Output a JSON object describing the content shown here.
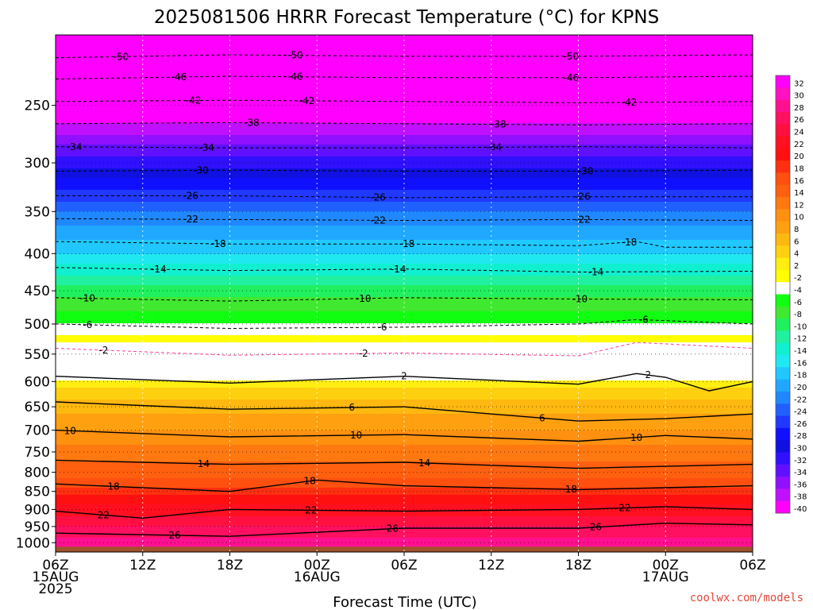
{
  "chart_data": {
    "type": "heatmap",
    "title": "2025081506 HRRR Forecast Temperature (°C) for KPNS",
    "xlabel": "Forecast Time (UTC)",
    "ylabel": "",
    "y_axis": {
      "scale": "log",
      "reversed": true,
      "ylim": [
        1030,
        200
      ]
    },
    "x_axis": {
      "xlim_hours": [
        0,
        48
      ]
    },
    "x_ticks": [
      {
        "hour": 0,
        "lines": [
          "06Z",
          "15AUG",
          "2025"
        ]
      },
      {
        "hour": 6,
        "lines": [
          "12Z"
        ]
      },
      {
        "hour": 12,
        "lines": [
          "18Z"
        ]
      },
      {
        "hour": 18,
        "lines": [
          "00Z",
          "16AUG"
        ]
      },
      {
        "hour": 24,
        "lines": [
          "06Z"
        ]
      },
      {
        "hour": 30,
        "lines": [
          "12Z"
        ]
      },
      {
        "hour": 36,
        "lines": [
          "18Z"
        ]
      },
      {
        "hour": 42,
        "lines": [
          "00Z",
          "17AUG"
        ]
      },
      {
        "hour": 48,
        "lines": [
          "06Z"
        ]
      }
    ],
    "y_ticks": [
      250,
      300,
      350,
      400,
      450,
      500,
      550,
      600,
      650,
      700,
      750,
      800,
      850,
      900,
      950,
      1000
    ],
    "grid": true,
    "colorbar": {
      "position": "right",
      "labels": [
        "32",
        "30",
        "28",
        "26",
        "24",
        "22",
        "20",
        "18",
        "16",
        "14",
        "12",
        "10",
        "8",
        "6",
        "4",
        "2",
        "-2",
        "-4",
        "-6",
        "-8",
        "-10",
        "-12",
        "-14",
        "-16",
        "-18",
        "-20",
        "-22",
        "-24",
        "-26",
        "-28",
        "-30",
        "-32",
        "-34",
        "-36",
        "-38",
        "-40"
      ],
      "colors": [
        "#ff00ff",
        "#ff10c0",
        "#ff1090",
        "#ff1060",
        "#ff1040",
        "#ff1020",
        "#ff1010",
        "#ff3010",
        "#ff5010",
        "#ff6010",
        "#ff7810",
        "#ff9010",
        "#ffa010",
        "#ffb810",
        "#ffd010",
        "#ffee10",
        "#ffff00",
        "#ffffff",
        "#10ff10",
        "#40e830",
        "#20f060",
        "#20f0a0",
        "#10f0d0",
        "#20e8f0",
        "#20c8ff",
        "#20a8ff",
        "#2088ff",
        "#2060ff",
        "#2038ff",
        "#1010ff",
        "#1010e0",
        "#3010ff",
        "#6010ff",
        "#9010ff",
        "#c010ff",
        "#ff00ff"
      ]
    },
    "temperature_profile": {
      "pressure_hpa": [
        1000,
        950,
        900,
        850,
        800,
        750,
        700,
        650,
        600,
        550,
        500,
        450,
        400,
        350,
        300,
        250,
        200
      ],
      "temperature_c": [
        28,
        25,
        22,
        18,
        14,
        12,
        9,
        6,
        2,
        0,
        -5,
        -10,
        -17,
        -23,
        -32,
        -42,
        -52
      ]
    },
    "contours": [
      {
        "value": -50,
        "style": "dashed",
        "points": [
          [
            0,
            215
          ],
          [
            12,
            213
          ],
          [
            24,
            214
          ],
          [
            36,
            214
          ],
          [
            48,
            213
          ]
        ],
        "labels": [
          4.5,
          16.5,
          35.5
        ]
      },
      {
        "value": -46,
        "style": "dashed",
        "points": [
          [
            0,
            230
          ],
          [
            12,
            228
          ],
          [
            24,
            229
          ],
          [
            36,
            229
          ],
          [
            48,
            228
          ]
        ],
        "labels": [
          8.5,
          16.5,
          35.5
        ]
      },
      {
        "value": -42,
        "style": "dashed",
        "points": [
          [
            0,
            247
          ],
          [
            12,
            246
          ],
          [
            24,
            247
          ],
          [
            36,
            248
          ],
          [
            48,
            247
          ]
        ],
        "labels": [
          9.5,
          17.3,
          39.5
        ]
      },
      {
        "value": -38,
        "style": "dashed",
        "points": [
          [
            0,
            265
          ],
          [
            12,
            264
          ],
          [
            24,
            265
          ],
          [
            36,
            266
          ],
          [
            48,
            265
          ]
        ],
        "labels": [
          13.5,
          30.5
        ]
      },
      {
        "value": -34,
        "style": "dashed",
        "points": [
          [
            0,
            285
          ],
          [
            12,
            286
          ],
          [
            24,
            286
          ],
          [
            36,
            285
          ],
          [
            48,
            286
          ]
        ],
        "labels": [
          1.3,
          10.4,
          30.2
        ]
      },
      {
        "value": -30,
        "style": "dashed",
        "points": [
          [
            0,
            308
          ],
          [
            12,
            307
          ],
          [
            24,
            308
          ],
          [
            36,
            308
          ],
          [
            48,
            307
          ]
        ],
        "labels": [
          10.0,
          36.5
        ]
      },
      {
        "value": -26,
        "style": "dashed",
        "points": [
          [
            0,
            333
          ],
          [
            12,
            333
          ],
          [
            24,
            335
          ],
          [
            36,
            334
          ],
          [
            48,
            334
          ]
        ],
        "labels": [
          9.3,
          22.2,
          36.3
        ]
      },
      {
        "value": -22,
        "style": "dashed",
        "points": [
          [
            0,
            358
          ],
          [
            12,
            359
          ],
          [
            24,
            360
          ],
          [
            36,
            359
          ],
          [
            48,
            360
          ]
        ],
        "labels": [
          9.3,
          22.2,
          36.3
        ]
      },
      {
        "value": -18,
        "style": "dashed",
        "points": [
          [
            0,
            385
          ],
          [
            12,
            388
          ],
          [
            24,
            388
          ],
          [
            36,
            390
          ],
          [
            40,
            385
          ],
          [
            42,
            392
          ],
          [
            48,
            392
          ]
        ],
        "labels": [
          11.2,
          24.2,
          39.5
        ]
      },
      {
        "value": -14,
        "style": "dashed",
        "points": [
          [
            0,
            418
          ],
          [
            12,
            422
          ],
          [
            24,
            420
          ],
          [
            36,
            424
          ],
          [
            48,
            423
          ]
        ],
        "labels": [
          7.1,
          23.6,
          37.2
        ]
      },
      {
        "value": -10,
        "style": "dashed",
        "points": [
          [
            0,
            460
          ],
          [
            12,
            465
          ],
          [
            24,
            460
          ],
          [
            36,
            462
          ],
          [
            48,
            463
          ]
        ],
        "labels": [
          2.2,
          21.2,
          36.1
        ]
      },
      {
        "value": -6,
        "style": "dashed",
        "points": [
          [
            0,
            500
          ],
          [
            12,
            507
          ],
          [
            24,
            505
          ],
          [
            36,
            500
          ],
          [
            40,
            493
          ],
          [
            48,
            500
          ]
        ],
        "labels": [
          2.2,
          22.5,
          40.5
        ]
      },
      {
        "value": -2,
        "style": "dashed",
        "points": [
          [
            0,
            540
          ],
          [
            12,
            552
          ],
          [
            24,
            548
          ],
          [
            36,
            553
          ],
          [
            40,
            530
          ],
          [
            48,
            540
          ]
        ],
        "labels": [
          3.3,
          21.2
        ]
      },
      {
        "value": 2,
        "style": "solid",
        "points": [
          [
            0,
            590
          ],
          [
            12,
            603
          ],
          [
            24,
            590
          ],
          [
            36,
            605
          ],
          [
            40,
            585
          ],
          [
            42,
            592
          ],
          [
            45,
            618
          ],
          [
            48,
            600
          ]
        ],
        "labels": [
          24.0,
          40.8
        ]
      },
      {
        "value": 6,
        "style": "solid",
        "points": [
          [
            0,
            640
          ],
          [
            12,
            655
          ],
          [
            24,
            650
          ],
          [
            36,
            680
          ],
          [
            42,
            675
          ],
          [
            48,
            665
          ]
        ],
        "labels": [
          20.4,
          33.5
        ]
      },
      {
        "value": 10,
        "style": "solid",
        "points": [
          [
            0,
            700
          ],
          [
            12,
            715
          ],
          [
            24,
            710
          ],
          [
            36,
            725
          ],
          [
            42,
            712
          ],
          [
            48,
            720
          ]
        ],
        "labels": [
          1.0,
          20.7,
          40.0
        ]
      },
      {
        "value": 14,
        "style": "solid",
        "points": [
          [
            0,
            770
          ],
          [
            12,
            780
          ],
          [
            24,
            775
          ],
          [
            36,
            790
          ],
          [
            42,
            785
          ],
          [
            48,
            780
          ]
        ],
        "labels": [
          10.2,
          25.4
        ]
      },
      {
        "value": 18,
        "style": "solid",
        "points": [
          [
            0,
            830
          ],
          [
            12,
            850
          ],
          [
            18,
            820
          ],
          [
            24,
            835
          ],
          [
            36,
            845
          ],
          [
            42,
            840
          ],
          [
            48,
            835
          ]
        ],
        "labels": [
          4.0,
          17.5,
          35.5
        ]
      },
      {
        "value": 22,
        "style": "solid",
        "points": [
          [
            0,
            905
          ],
          [
            6,
            925
          ],
          [
            12,
            900
          ],
          [
            24,
            905
          ],
          [
            36,
            900
          ],
          [
            42,
            892
          ],
          [
            48,
            900
          ]
        ],
        "labels": [
          3.3,
          17.6,
          39.2
        ]
      },
      {
        "value": 26,
        "style": "solid",
        "points": [
          [
            0,
            970
          ],
          [
            12,
            980
          ],
          [
            24,
            955
          ],
          [
            36,
            955
          ],
          [
            42,
            940
          ],
          [
            48,
            945
          ]
        ],
        "labels": [
          8.2,
          23.2,
          37.2
        ]
      }
    ]
  },
  "credit": "coolwx.com/models"
}
